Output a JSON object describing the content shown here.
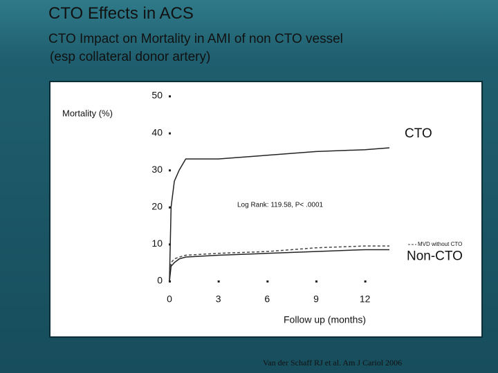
{
  "slide": {
    "title": "CTO Effects in ACS",
    "subtitle_lines": [
      "CTO Impact on Mortality in AMI of non CTO vessel",
      "(esp collateral donor artery)"
    ],
    "citation": "Van der Schaff RJ et al. Am J Cariol 2006"
  },
  "chart_data": {
    "type": "line",
    "y_label": "Mortality (%)",
    "x_label": "Follow up (months)",
    "annotation": "Log Rank: 119.58, P< .0001",
    "xlim": [
      0,
      13.5
    ],
    "xticks": [
      0,
      3,
      6,
      9,
      12
    ],
    "ylim": [
      0,
      50
    ],
    "yticks": [
      0,
      10,
      20,
      30,
      40,
      50
    ],
    "x": [
      0,
      0.1,
      0.3,
      0.6,
      1,
      3,
      6,
      9,
      12,
      13.5
    ],
    "series": [
      {
        "name": "CTO",
        "color": "#222222",
        "dashed": false,
        "values": [
          0,
          20,
          27,
          30,
          33,
          33,
          34,
          35,
          35.5,
          36
        ]
      },
      {
        "name": "MVD without CTO",
        "color": "#444444",
        "dashed": true,
        "values": [
          0,
          5,
          6,
          6.5,
          7,
          7.5,
          8,
          9,
          9.5,
          9.5
        ]
      },
      {
        "name": "Non-CTO",
        "color": "#222222",
        "dashed": false,
        "values": [
          0,
          4,
          5,
          6,
          6.5,
          7,
          7.5,
          8,
          8.5,
          8.5
        ]
      }
    ]
  }
}
